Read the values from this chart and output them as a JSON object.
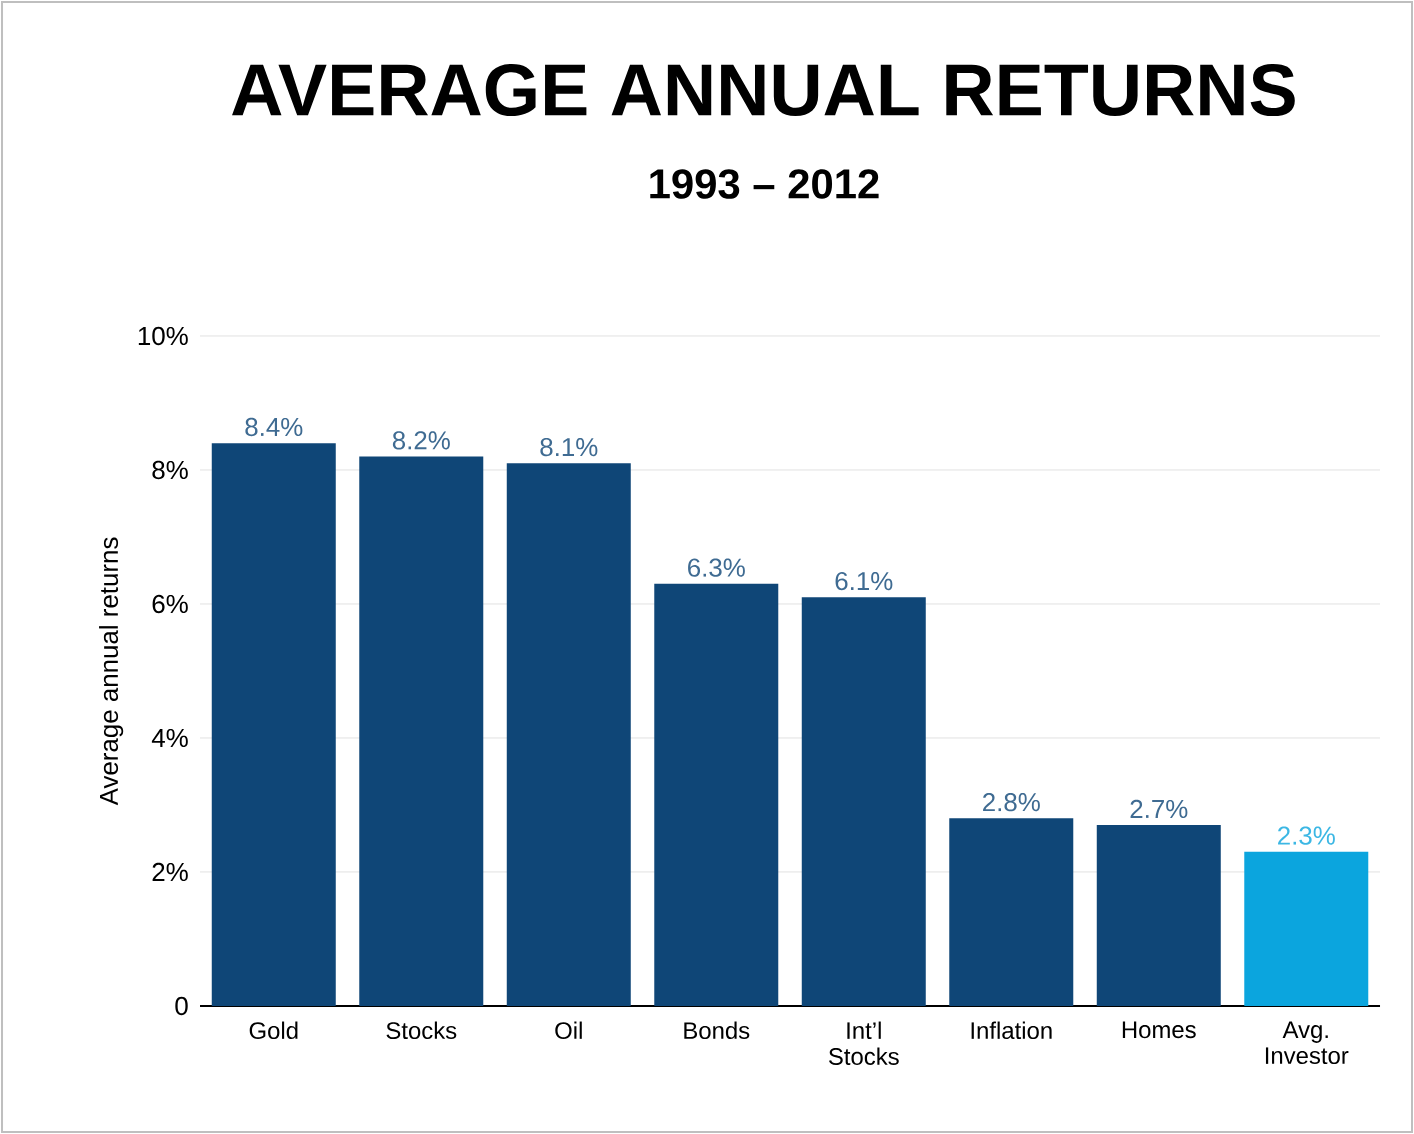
{
  "chart_data": {
    "type": "bar",
    "title": "AVERAGE ANNUAL RETURNS",
    "subtitle": "1993 – 2012",
    "ylabel": "Average annual returns",
    "categories": [
      "Gold",
      "Stocks",
      "Oil",
      "Bonds",
      "Int’l Stocks",
      "Inflation",
      "Homes",
      "Avg. Investor"
    ],
    "values": [
      8.4,
      8.2,
      8.1,
      6.3,
      6.1,
      2.8,
      2.7,
      2.3
    ],
    "colors": [
      "#0f4677",
      "#0f4677",
      "#0f4677",
      "#0f4677",
      "#0f4677",
      "#0f4677",
      "#0f4677",
      "#0ba5de"
    ],
    "value_labels": [
      "8.4%",
      "8.2%",
      "8.1%",
      "6.3%",
      "6.1%",
      "2.8%",
      "2.7%",
      "2.3%"
    ],
    "ylim": [
      0,
      10
    ],
    "yticks": [
      0,
      {
        "value": 2,
        "label": "2%"
      },
      {
        "value": 4,
        "label": "4%"
      },
      {
        "value": 6,
        "label": "6%"
      },
      {
        "value": 8,
        "label": "8%"
      },
      {
        "value": 10,
        "label": "10%"
      }
    ],
    "grid": "y"
  }
}
